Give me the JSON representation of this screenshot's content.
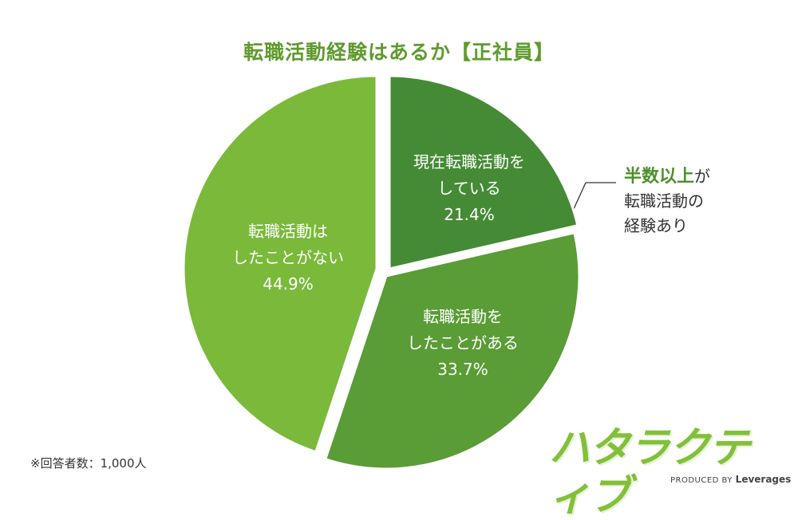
{
  "chart_data": {
    "type": "pie",
    "title": "転職活動経験はあるか【正社員】",
    "slices": [
      {
        "label_line1": "現在転職活動を",
        "label_line2": "している",
        "value": 21.4,
        "value_text": "21.4%",
        "color": "#458b35"
      },
      {
        "label_line1": "転職活動を",
        "label_line2": "したことがある",
        "value": 33.7,
        "value_text": "33.7%",
        "color": "#5a9c35"
      },
      {
        "label_line1": "転職活動は",
        "label_line2": "したことがない",
        "value": 44.9,
        "value_text": "44.9%",
        "color": "#7ab93a"
      }
    ]
  },
  "annotation": {
    "highlight": "半数以上",
    "suffix": "が",
    "line2": "転職活動の",
    "line3": "経験あり"
  },
  "note": "※回答者数：1,000人",
  "logo": {
    "text": "ハタラクティブ",
    "producer_prefix": "PRODUCED BY",
    "producer_brand": "Leverages"
  }
}
